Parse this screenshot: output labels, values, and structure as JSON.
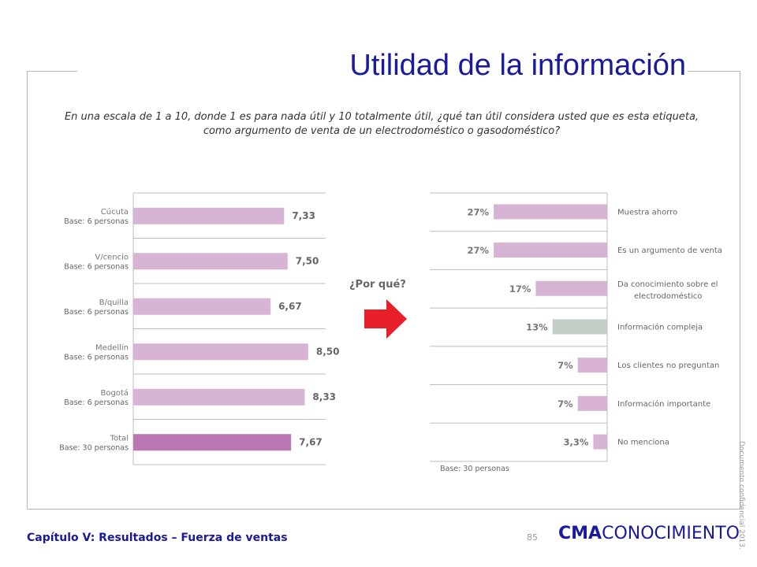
{
  "title": "Utilidad de la información",
  "question": "En una escala de 1 a 10, donde 1 es para nada útil y 10 totalmente útil, ¿qué tan útil considera usted que es esta etiqueta, como argumento de venta de un electrodoméstico o gasodoméstico?",
  "por_que_label": "¿Por qué?",
  "footer": {
    "chapter": "Capítulo V: Resultados – Fuerza de ventas",
    "page_number": "85",
    "logo_bold": "CMA",
    "logo_light": "CONOCIMIENTO",
    "confidential": "Documento confidencial 2013."
  },
  "colors": {
    "title": "#1a1a9c",
    "bar_light": "#d8b4d4",
    "bar_dark": "#b977b3",
    "bar_gray": "#c3cfc6",
    "arrow": "#e8202a"
  },
  "chart_data": [
    {
      "type": "bar",
      "orientation": "horizontal",
      "categories": [
        "Cúcuta",
        "V/cencio",
        "B/quilla",
        "Medellín",
        "Bogotá",
        "Total"
      ],
      "bases": [
        "Base: 6 personas",
        "Base: 6 personas",
        "Base: 6 personas",
        "Base: 6 personas",
        "Base: 6 personas",
        "Base: 30 personas"
      ],
      "values": [
        7.33,
        7.5,
        6.67,
        8.5,
        8.33,
        7.67
      ],
      "value_labels": [
        "7,33",
        "7,50",
        "6,67",
        "8,50",
        "8,33",
        "7,67"
      ],
      "highlight": "Total",
      "xlim": [
        0,
        10
      ]
    },
    {
      "type": "bar",
      "orientation": "horizontal",
      "categories": [
        "Muestra ahorro",
        "Es un argumento de venta",
        "Da conocimiento sobre el electrodoméstico",
        "Información compleja",
        "Los clientes no preguntan",
        "Información importante",
        "No menciona"
      ],
      "values": [
        27,
        27,
        17,
        13,
        7,
        7,
        3.3
      ],
      "value_labels": [
        "27%",
        "27%",
        "17%",
        "13%",
        "7%",
        "7%",
        "3,3%"
      ],
      "highlight": "Información compleja",
      "base": "Base: 30 personas",
      "xlim": [
        0,
        40
      ]
    }
  ]
}
